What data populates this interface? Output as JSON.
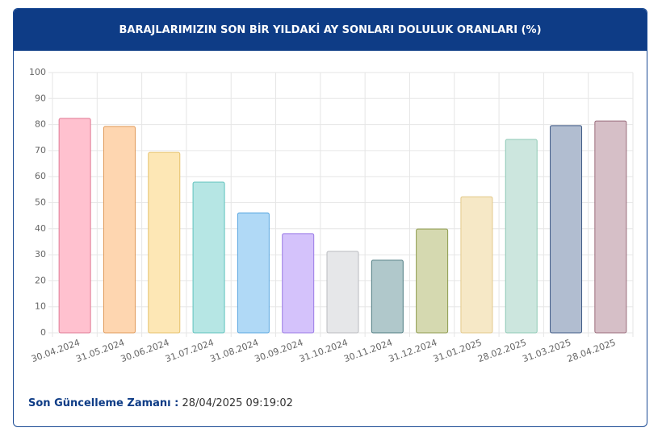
{
  "chart_data": {
    "type": "bar",
    "title": "BARAJLARIMIZIN SON BİR YILDAKİ AY SONLARI DOLULUK ORANLARI (%)",
    "categories": [
      "30.04.2024",
      "31.05.2024",
      "30.06.2024",
      "31.07.2024",
      "31.08.2024",
      "30.09.2024",
      "31.10.2024",
      "30.11.2024",
      "31.12.2024",
      "31.01.2025",
      "28.02.2025",
      "31.03.2025",
      "28.04.2025"
    ],
    "values": [
      82.4,
      79.3,
      69.3,
      57.9,
      46.1,
      38.1,
      31.3,
      27.9,
      39.9,
      52.3,
      74.3,
      79.6,
      81.4
    ],
    "colors": [
      "#ffc1cf",
      "#fed6b0",
      "#fde7b5",
      "#b6e6e4",
      "#b0d9f6",
      "#d4c2fb",
      "#e6e7e9",
      "#b0c8cb",
      "#d5d9b0",
      "#f6e8c6",
      "#cce6de",
      "#b1bdd0",
      "#d6bfc7"
    ],
    "border_colors": [
      "#e07a95",
      "#e09a5a",
      "#e6c16a",
      "#5fc2bd",
      "#5aa7e0",
      "#9a7ae6",
      "#b9bbbf",
      "#4f7c82",
      "#8e9a4e",
      "#e3c98a",
      "#8ec9b5",
      "#3f5a86",
      "#9a6b7b"
    ],
    "ylim": [
      0,
      100
    ],
    "yticks": [
      0,
      10,
      20,
      30,
      40,
      50,
      60,
      70,
      80,
      90,
      100
    ],
    "grid": true
  },
  "footer": {
    "label": "Son Güncelleme Zamanı :",
    "timestamp": "28/04/2025 09:19:02"
  }
}
